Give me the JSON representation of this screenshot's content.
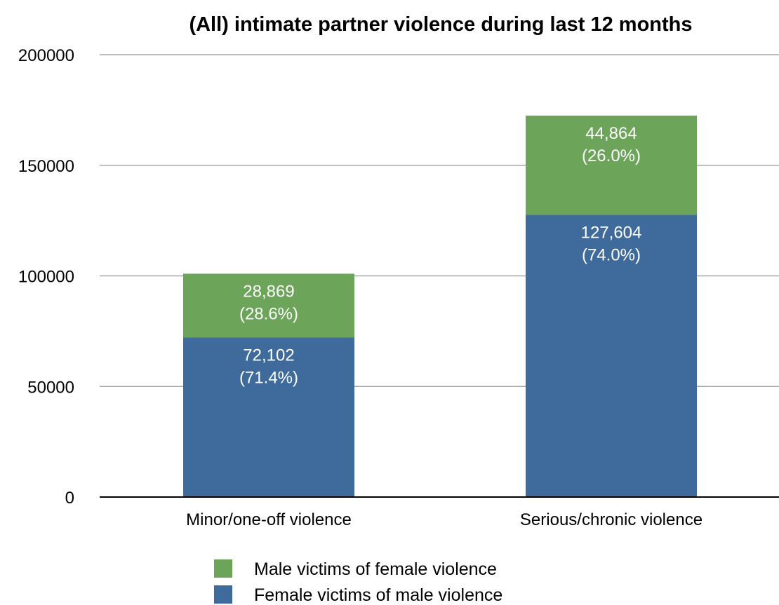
{
  "chart_data": {
    "type": "bar",
    "stacked": true,
    "title": "(All) intimate partner violence during last 12 months",
    "xlabel": "",
    "ylabel": "",
    "ylim": [
      0,
      200000
    ],
    "yticks": [
      0,
      50000,
      100000,
      150000,
      200000
    ],
    "ytick_labels": [
      "0",
      "50000",
      "100000",
      "150000",
      "200000"
    ],
    "grid": true,
    "legend_position": "bottom",
    "categories": [
      "Minor/one-off violence",
      "Serious/chronic violence"
    ],
    "series": [
      {
        "name": "Female victims of male violence",
        "color": "#3e6b9c",
        "values": [
          72102,
          127604
        ],
        "labels": [
          [
            "72,102",
            "(71.4%)"
          ],
          [
            "127,604",
            "(74.0%)"
          ]
        ]
      },
      {
        "name": "Male victims of female violence",
        "color": "#6ca45a",
        "values": [
          28869,
          44864
        ],
        "labels": [
          [
            "28,869",
            "(28.6%)"
          ],
          [
            "44,864",
            "(26.0%)"
          ]
        ]
      }
    ],
    "legend_order": [
      1,
      0
    ]
  }
}
